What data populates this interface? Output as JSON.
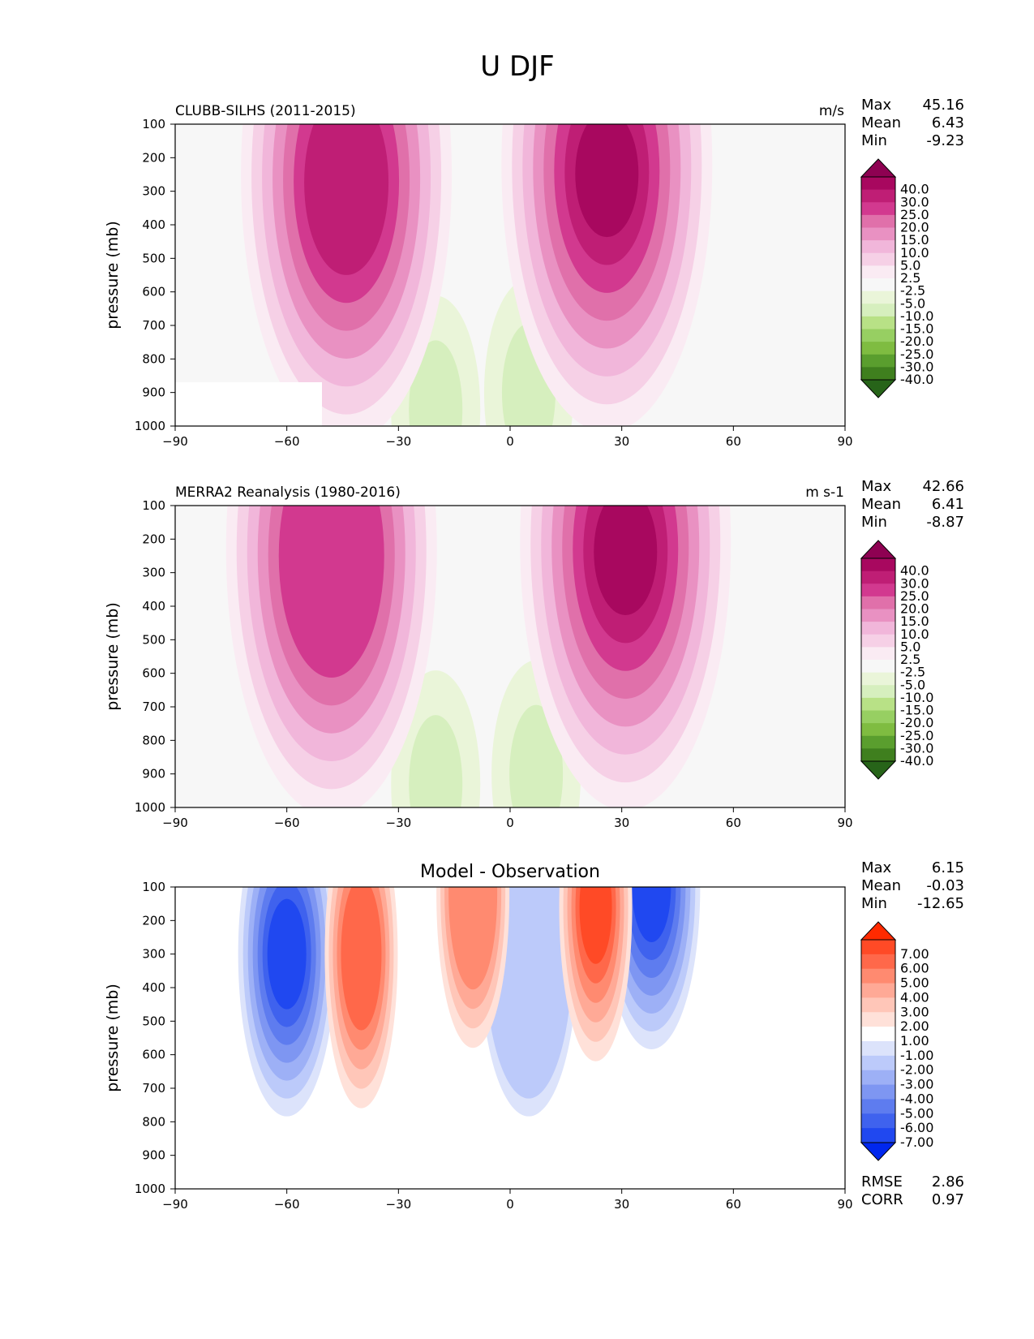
{
  "figure": {
    "title": "U DJF"
  },
  "chart_data": [
    {
      "type": "contour",
      "title": "CLUBB-SILHS (2011-2015)",
      "units": "m/s",
      "ylabel": "pressure (mb)",
      "xlim": [
        -90,
        90
      ],
      "ylim": [
        1000,
        100
      ],
      "x_ticks": [
        "−90",
        "−60",
        "−30",
        "0",
        "30",
        "60",
        "90"
      ],
      "y_ticks": [
        "100",
        "200",
        "300",
        "400",
        "500",
        "600",
        "700",
        "800",
        "900",
        "1000"
      ],
      "stats": [
        {
          "label": "Max",
          "value": "45.16"
        },
        {
          "label": "Mean",
          "value": "6.43"
        },
        {
          "label": "Min",
          "value": "-9.23"
        }
      ],
      "colorbar": {
        "labels": [
          "40.0",
          "30.0",
          "25.0",
          "20.0",
          "15.0",
          "10.0",
          "5.0",
          "2.5",
          "-2.5",
          "-5.0",
          "-10.0",
          "-15.0",
          "-20.0",
          "-25.0",
          "-30.0",
          "-40.0"
        ],
        "colors": [
          "#8e0152",
          "#a8085f",
          "#bf1e75",
          "#d2398f",
          "#e070aa",
          "#e991c2",
          "#f1b6da",
          "#f6d0e6",
          "#faebf3",
          "#f7f7f7",
          "#eaf5d9",
          "#d6efbe",
          "#b8e186",
          "#97cf62",
          "#7fbc41",
          "#5a9e2e",
          "#3f7f1e",
          "#276419"
        ]
      },
      "features": {
        "jets": [
          {
            "lat": -44,
            "p": 250,
            "peak": 36
          },
          {
            "lat": 26,
            "p": 220,
            "peak": 45
          }
        ],
        "easterly_bands": [
          {
            "lat": 5,
            "p": 900,
            "min": -9
          },
          {
            "lat": -20,
            "p": 950,
            "min": -6
          }
        ]
      }
    },
    {
      "type": "contour",
      "title": "MERRA2 Reanalysis (1980-2016)",
      "units": "m s-1",
      "ylabel": "pressure (mb)",
      "xlim": [
        -90,
        90
      ],
      "ylim": [
        1000,
        100
      ],
      "x_ticks": [
        "−90",
        "−60",
        "−30",
        "0",
        "30",
        "60",
        "90"
      ],
      "y_ticks": [
        "100",
        "200",
        "300",
        "400",
        "500",
        "600",
        "700",
        "800",
        "900",
        "1000"
      ],
      "stats": [
        {
          "label": "Max",
          "value": "42.66"
        },
        {
          "label": "Mean",
          "value": "6.41"
        },
        {
          "label": "Min",
          "value": "-8.87"
        }
      ],
      "colorbar": {
        "labels": [
          "40.0",
          "30.0",
          "25.0",
          "20.0",
          "15.0",
          "10.0",
          "5.0",
          "2.5",
          "-2.5",
          "-5.0",
          "-10.0",
          "-15.0",
          "-20.0",
          "-25.0",
          "-30.0",
          "-40.0"
        ],
        "colors": [
          "#8e0152",
          "#a8085f",
          "#bf1e75",
          "#d2398f",
          "#e070aa",
          "#e991c2",
          "#f1b6da",
          "#f6d0e6",
          "#faebf3",
          "#f7f7f7",
          "#eaf5d9",
          "#d6efbe",
          "#b8e186",
          "#97cf62",
          "#7fbc41",
          "#5a9e2e",
          "#3f7f1e",
          "#276419"
        ]
      },
      "features": {
        "jets": [
          {
            "lat": -48,
            "p": 230,
            "peak": 32
          },
          {
            "lat": 31,
            "p": 210,
            "peak": 42
          }
        ],
        "easterly_bands": [
          {
            "lat": 7,
            "p": 900,
            "min": -8
          },
          {
            "lat": -20,
            "p": 930,
            "min": -5
          }
        ]
      }
    },
    {
      "type": "contour",
      "title": "Model - Observation",
      "ylabel": "pressure (mb)",
      "xlim": [
        -90,
        90
      ],
      "ylim": [
        1000,
        100
      ],
      "x_ticks": [
        "−90",
        "−60",
        "−30",
        "0",
        "30",
        "60",
        "90"
      ],
      "y_ticks": [
        "100",
        "200",
        "300",
        "400",
        "500",
        "600",
        "700",
        "800",
        "900",
        "1000"
      ],
      "stats": [
        {
          "label": "Max",
          "value": "6.15"
        },
        {
          "label": "Mean",
          "value": "-0.03"
        },
        {
          "label": "Min",
          "value": "-12.65"
        }
      ],
      "stats_bottom": [
        {
          "label": "RMSE",
          "value": "2.86"
        },
        {
          "label": "CORR",
          "value": "0.97"
        }
      ],
      "colorbar": {
        "labels": [
          "7.00",
          "6.00",
          "5.00",
          "4.00",
          "3.00",
          "2.00",
          "1.00",
          "-1.00",
          "-2.00",
          "-3.00",
          "-4.00",
          "-5.00",
          "-6.00",
          "-7.00"
        ],
        "colors": [
          "#ff2a00",
          "#ff4a26",
          "#ff684a",
          "#ff8a70",
          "#ffa996",
          "#ffc6b8",
          "#ffe1d9",
          "#ffffff",
          "#dce3fb",
          "#bccafa",
          "#9db0f6",
          "#7e96f2",
          "#5e7cef",
          "#3f62ee",
          "#2048f0",
          "#0027ee"
        ]
      },
      "features": {
        "positive": [
          {
            "lat": -40,
            "p": 300,
            "peak": 5
          },
          {
            "lat": 23,
            "p": 160,
            "peak": 6
          },
          {
            "lat": -10,
            "p": 120,
            "peak": 4
          }
        ],
        "negative": [
          {
            "lat": 38,
            "p": 100,
            "peak": -12.6
          },
          {
            "lat": -60,
            "p": 300,
            "peak": -7
          },
          {
            "lat": 5,
            "p": 300,
            "peak": -2
          }
        ]
      }
    }
  ]
}
